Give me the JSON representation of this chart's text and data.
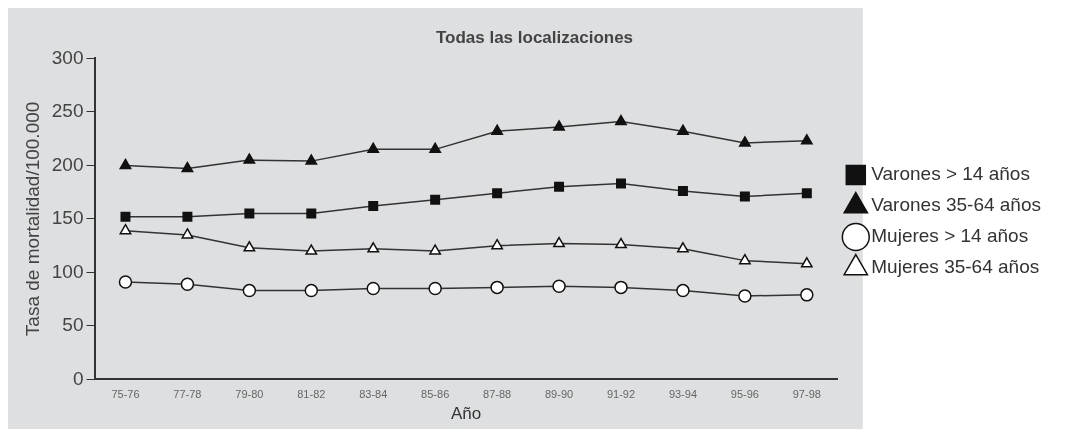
{
  "chart_data": {
    "type": "line",
    "title": "Todas las localizaciones",
    "xlabel": "Año",
    "ylabel": "Tasa de mortalidad/100.000",
    "categories": [
      "75-76",
      "77-78",
      "79-80",
      "81-82",
      "83-84",
      "85-86",
      "87-88",
      "89-90",
      "91-92",
      "93-94",
      "95-96",
      "97-98"
    ],
    "ylim": [
      0,
      300
    ],
    "yticks": [
      0,
      50,
      100,
      150,
      200,
      250,
      300
    ],
    "grid": false,
    "legend": "right",
    "line_style": "solid",
    "series": [
      {
        "name": "Varones > 14 años",
        "color": "#111111",
        "marker": "square",
        "values": [
          152,
          152,
          155,
          155,
          162,
          168,
          174,
          180,
          183,
          176,
          171,
          174
        ]
      },
      {
        "name": "Varones 35-64 años",
        "color": "#111111",
        "marker": "triangle",
        "values": [
          200,
          197,
          205,
          204,
          215,
          215,
          232,
          236,
          241,
          232,
          221,
          223
        ]
      },
      {
        "name": "Mujeres > 14 años",
        "color": "#ffffff",
        "marker": "circle",
        "values": [
          91,
          89,
          83,
          83,
          85,
          85,
          86,
          87,
          86,
          83,
          78,
          79
        ]
      },
      {
        "name": "Mujeres 35-64 años",
        "color": "#ffffff",
        "marker": "triangle",
        "values": [
          139,
          135,
          123,
          120,
          122,
          120,
          125,
          127,
          126,
          122,
          111,
          108
        ]
      }
    ]
  }
}
